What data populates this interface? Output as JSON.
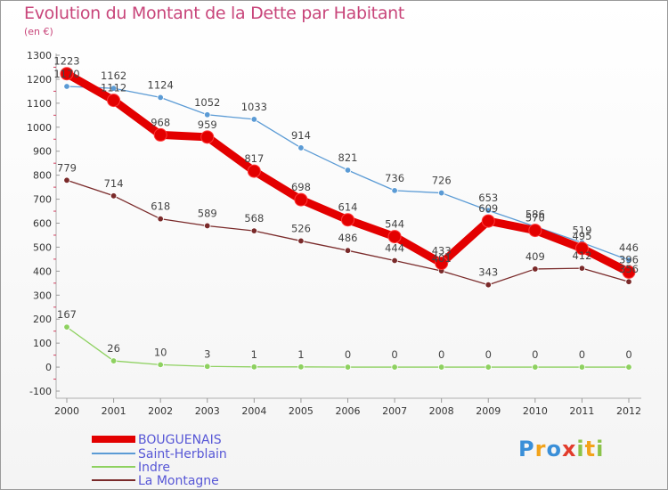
{
  "chart_data": {
    "type": "line",
    "title": "Evolution du Montant de la Dette par Habitant",
    "subtitle": "(en €)",
    "x": [
      "2000",
      "2001",
      "2002",
      "2003",
      "2004",
      "2005",
      "2006",
      "2007",
      "2008",
      "2009",
      "2010",
      "2011",
      "2012"
    ],
    "ylim": [
      -100,
      1300
    ],
    "yticks": [
      -100,
      0,
      100,
      200,
      300,
      400,
      500,
      600,
      700,
      800,
      900,
      1000,
      1100,
      1200,
      1300
    ],
    "grid": false,
    "legend_placement": "bottom-left",
    "series": [
      {
        "name": "BOUGUENAIS",
        "color": "#e30000",
        "values": [
          1223,
          1112,
          968,
          959,
          817,
          698,
          614,
          544,
          433,
          609,
          570,
          495,
          396
        ]
      },
      {
        "name": "Saint-Herblain",
        "color": "#5b9bd5",
        "values": [
          1170,
          1162,
          1124,
          1052,
          1033,
          914,
          821,
          736,
          726,
          653,
          586,
          519,
          446
        ]
      },
      {
        "name": "Indre",
        "color": "#8ed160",
        "values": [
          167,
          26,
          10,
          3,
          1,
          1,
          0,
          0,
          0,
          0,
          0,
          0,
          0
        ]
      },
      {
        "name": "La Montagne",
        "color": "#7a2a2a",
        "values": [
          779,
          714,
          618,
          589,
          568,
          526,
          486,
          444,
          401,
          343,
          409,
          412,
          356
        ]
      }
    ]
  },
  "logo": {
    "letters": [
      "P",
      "r",
      "o",
      "x",
      "i",
      "t",
      "i"
    ],
    "colors": [
      "#3a8fd8",
      "#f2a31b",
      "#3a8fd8",
      "#e23c2c",
      "#8bc34a",
      "#f2a31b",
      "#8bc34a"
    ]
  }
}
